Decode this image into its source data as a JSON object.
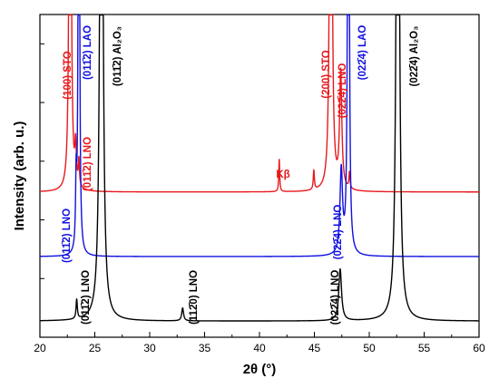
{
  "chart_data": {
    "type": "line",
    "xlabel": "2θ (°)",
    "ylabel": "Intensity (arb. u.)",
    "xlim": [
      20,
      60
    ],
    "x_ticks": [
      "20",
      "25",
      "30",
      "35",
      "40",
      "45",
      "50",
      "55",
      "60"
    ],
    "y_ticks_labeled": false,
    "grid": false,
    "legend": "none",
    "series": [
      {
        "color": "#e8191c",
        "baseline": 0.45,
        "peaks": [
          {
            "x": 22.75,
            "height": 3.0,
            "width": 0.07
          },
          {
            "x": 23.25,
            "height": 0.12,
            "width": 0.08
          },
          {
            "x": 23.55,
            "height": 0.08,
            "width": 0.06
          },
          {
            "x": 41.8,
            "height": 0.1,
            "width": 0.05
          },
          {
            "x": 44.95,
            "height": 0.06,
            "width": 0.06
          },
          {
            "x": 46.5,
            "height": 3.0,
            "width": 0.08
          },
          {
            "x": 47.4,
            "height": 0.36,
            "width": 0.12
          },
          {
            "x": 48.2,
            "height": 0.05,
            "width": 0.06
          }
        ]
      },
      {
        "color": "#1010e0",
        "baseline": 0.25,
        "peaks": [
          {
            "x": 23.3,
            "height": 0.2,
            "width": 0.06
          },
          {
            "x": 23.55,
            "height": 3.0,
            "width": 0.05
          },
          {
            "x": 47.45,
            "height": 0.26,
            "width": 0.14
          },
          {
            "x": 48.1,
            "height": 3.0,
            "width": 0.06
          }
        ]
      },
      {
        "color": "#000000",
        "baseline": 0.05,
        "peaks": [
          {
            "x": 23.35,
            "height": 0.06,
            "width": 0.07
          },
          {
            "x": 25.6,
            "height": 3.0,
            "width": 0.12
          },
          {
            "x": 33.0,
            "height": 0.04,
            "width": 0.1
          },
          {
            "x": 47.35,
            "height": 0.16,
            "width": 0.15
          },
          {
            "x": 52.6,
            "height": 3.0,
            "width": 0.12
          }
        ]
      }
    ],
    "annotations": [
      {
        "text": "(100) STO",
        "color": "#e8191c"
      },
      {
        "text": "(011̄2) LAO",
        "color": "#1010e0"
      },
      {
        "text": "(011̄2) Al₂O₃",
        "color": "#000000"
      },
      {
        "text": "(011̄2) LNO",
        "color": "#e8191c"
      },
      {
        "text": "(200) STO",
        "color": "#e8191c"
      },
      {
        "text": "(022̄4) LNO",
        "color": "#e8191c"
      },
      {
        "text": "(022̄4) LAO",
        "color": "#1010e0"
      },
      {
        "text": "(022̄4) Al₂O₃",
        "color": "#000000"
      },
      {
        "text": "Kβ",
        "color": "#e8191c"
      },
      {
        "text": "(011̄2) LNO",
        "color": "#1010e0"
      },
      {
        "text": "(022̄4) LNO",
        "color": "#1010e0"
      },
      {
        "text": "(011̄2) LNO",
        "color": "#000000"
      },
      {
        "text": "(112̄0) LNO",
        "color": "#000000"
      },
      {
        "text": "(022̄4) LNO",
        "color": "#000000"
      }
    ]
  }
}
